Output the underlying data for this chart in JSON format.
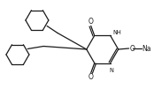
{
  "bg_color": "#ffffff",
  "line_color": "#1a1a1a",
  "figsize": [
    1.74,
    1.09
  ],
  "dpi": 100,
  "xlim": [
    0,
    174
  ],
  "ylim": [
    0,
    109
  ],
  "hex_r": 13,
  "pyr_r": 18
}
